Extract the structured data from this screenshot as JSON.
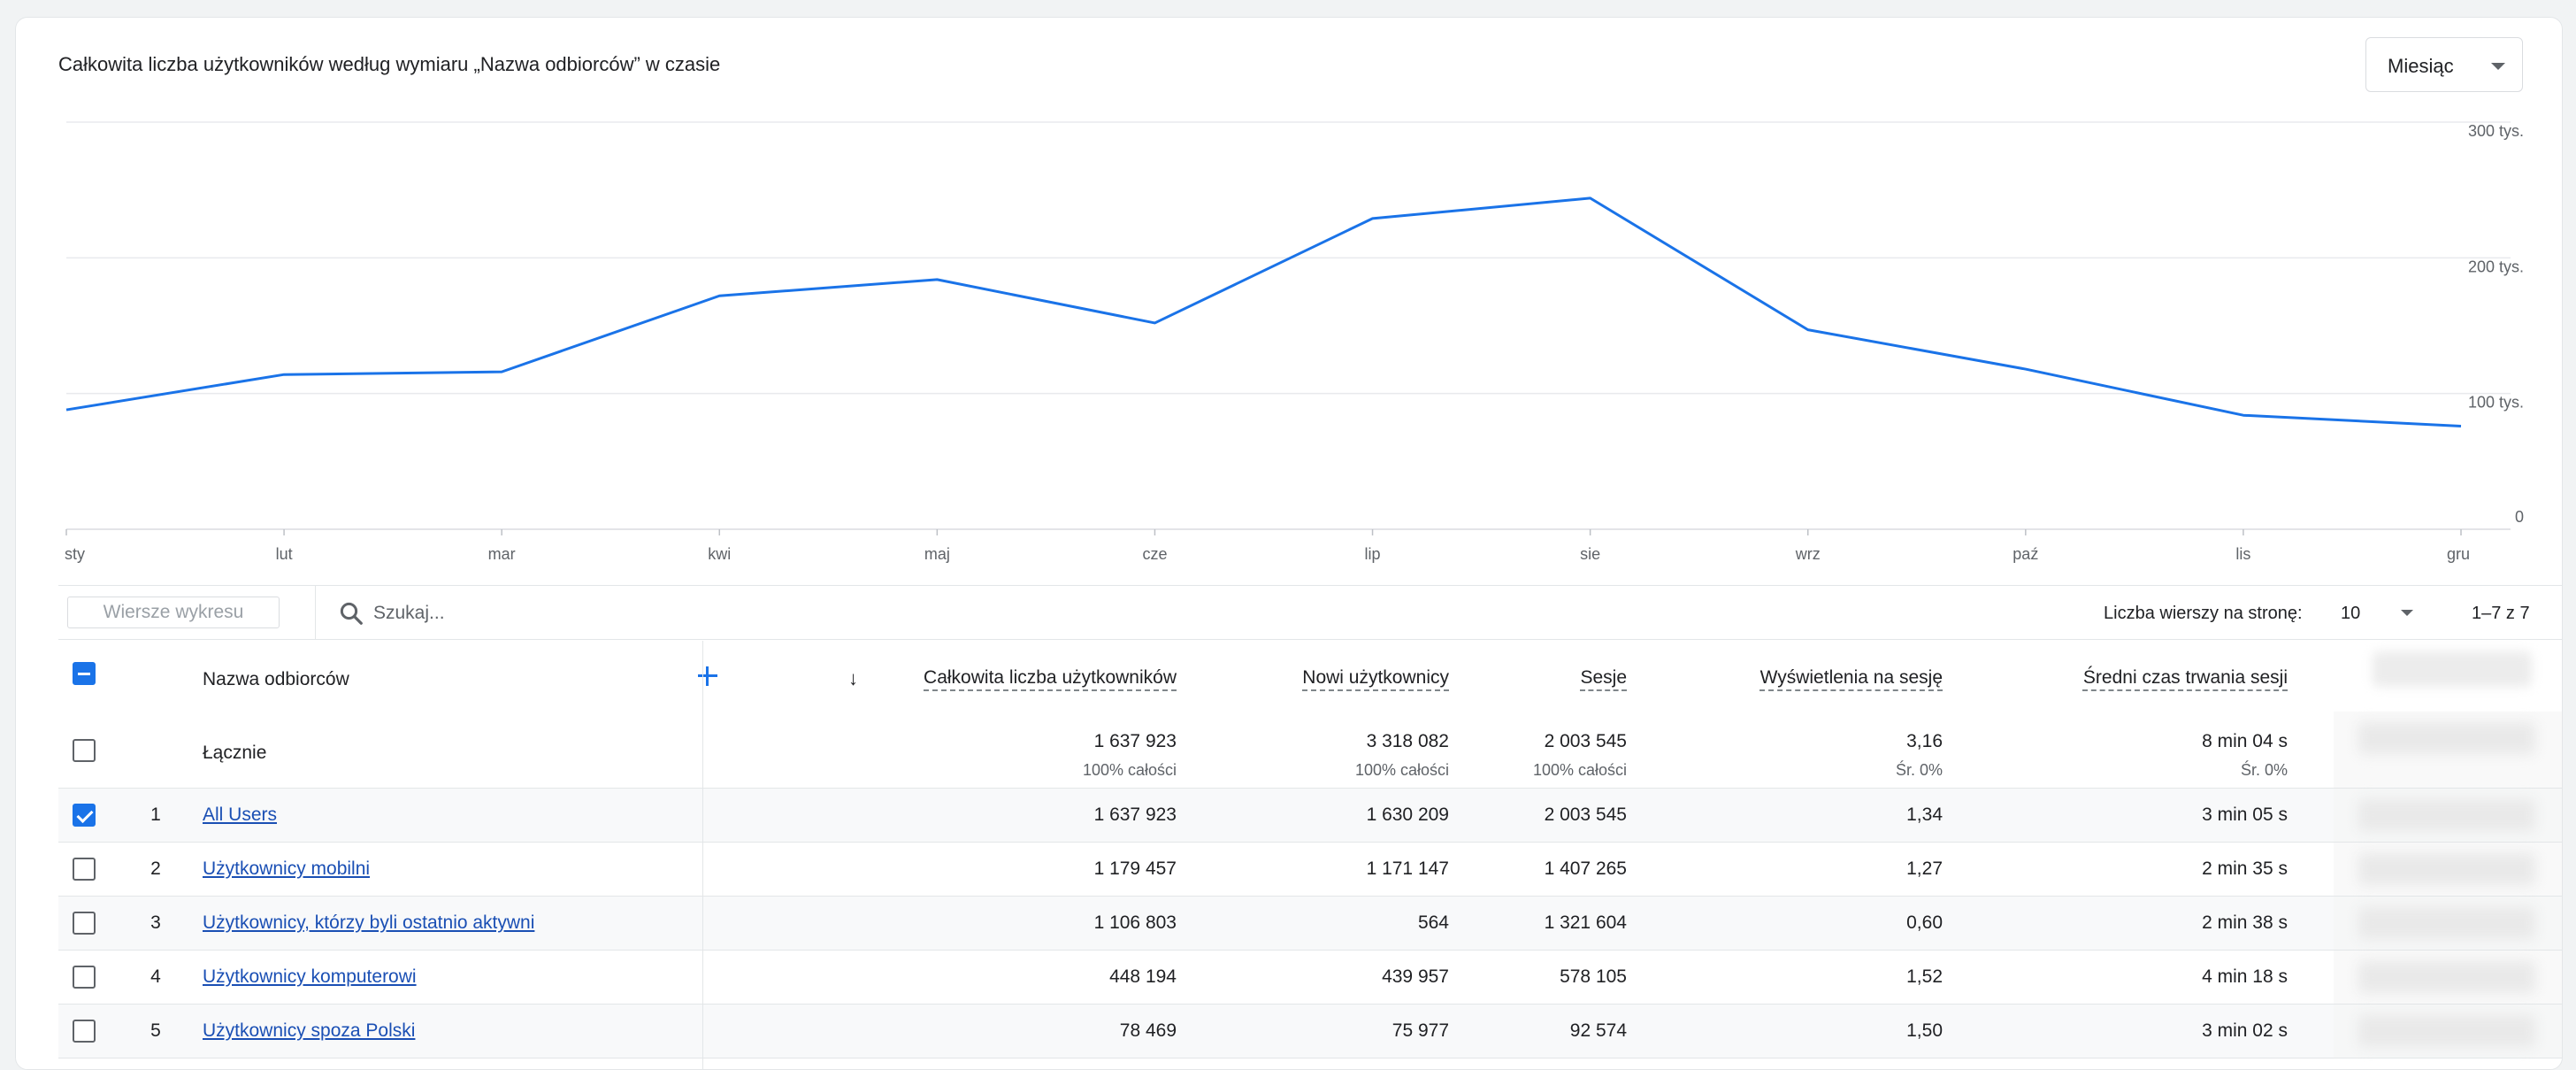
{
  "chart": {
    "title": "Całkowita liczba użytkowników według wymiaru „Nazwa odbiorców” w czasie",
    "period": "Miesiąc"
  },
  "chart_data": {
    "type": "line",
    "categories": [
      "sty",
      "lut",
      "mar",
      "kwi",
      "maj",
      "cze",
      "lip",
      "sie",
      "wrz",
      "paź",
      "lis",
      "gru"
    ],
    "series": [
      {
        "values": [
          88000,
          114000,
          116000,
          172000,
          184000,
          152000,
          229000,
          244000,
          147000,
          118000,
          84000,
          76000
        ]
      }
    ],
    "yticks": [
      "300 tys.",
      "200 tys.",
      "100 tys.",
      "0"
    ],
    "ylim": [
      0,
      300000
    ],
    "grid": true,
    "line_color": "#1a73e8"
  },
  "toolbar": {
    "chart_rows": "Wiersze wykresu",
    "search_placeholder": "Szukaj...",
    "rows_per_page_label": "Liczba wierszy na stronę:",
    "rows_per_page": "10",
    "range": "1–7 z 7"
  },
  "table": {
    "dimension_header": "Nazwa odbiorców",
    "columns": [
      "Całkowita liczba użytkowników",
      "Nowi użytkownicy",
      "Sesje",
      "Wyświetlenia na sesję",
      "Średni czas trwania sesji"
    ],
    "totals": {
      "label": "Łącznie",
      "values": [
        "1 637 923",
        "3 318 082",
        "2 003 545",
        "3,16",
        "8 min 04 s"
      ],
      "subs": [
        "100% całości",
        "100% całości",
        "100% całości",
        "Śr. 0%",
        "Śr. 0%"
      ]
    },
    "rows": [
      {
        "index": "1",
        "name": "All Users",
        "checked": true,
        "values": [
          "1 637 923",
          "1 630 209",
          "2 003 545",
          "1,34",
          "3 min 05 s"
        ]
      },
      {
        "index": "2",
        "name": "Użytkownicy mobilni",
        "checked": false,
        "values": [
          "1 179 457",
          "1 171 147",
          "1 407 265",
          "1,27",
          "2 min 35 s"
        ]
      },
      {
        "index": "3",
        "name": "Użytkownicy, którzy byli ostatnio aktywni",
        "checked": false,
        "values": [
          "1 106 803",
          "564",
          "1 321 604",
          "0,60",
          "2 min 38 s"
        ]
      },
      {
        "index": "4",
        "name": "Użytkownicy komputerowi",
        "checked": false,
        "values": [
          "448 194",
          "439 957",
          "578 105",
          "1,52",
          "4 min 18 s"
        ]
      },
      {
        "index": "5",
        "name": "Użytkownicy spoza Polski",
        "checked": false,
        "values": [
          "78 469",
          "75 977",
          "92 574",
          "1,50",
          "3 min 02 s"
        ]
      }
    ]
  }
}
